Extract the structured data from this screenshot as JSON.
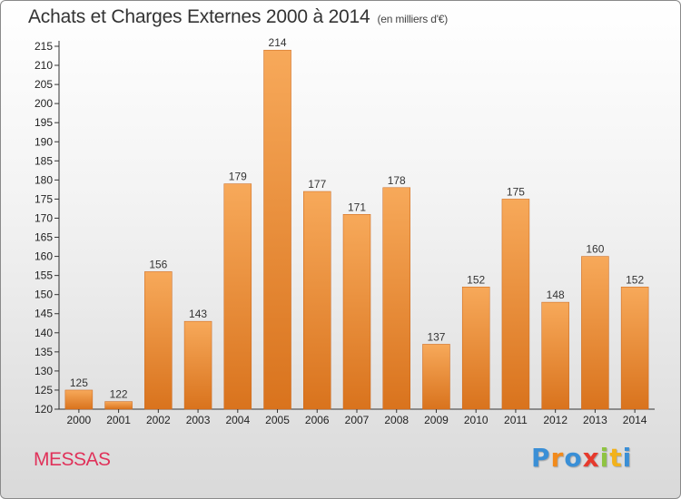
{
  "title": "Achats et Charges Externes 2000 à 2014",
  "subtitle": "(en milliers d'€)",
  "commune": "MESSAS",
  "logo": {
    "letters": [
      "P",
      "r",
      "o",
      "x",
      "i",
      "t",
      "i"
    ],
    "colors": [
      "#3a8fd6",
      "#f28a1b",
      "#3a8fd6",
      "#e63a2d",
      "#8fc441",
      "#f2b21b",
      "#3a8fd6"
    ]
  },
  "colors": {
    "bar_light": "#f7a95a",
    "bar_dark": "#d9731d",
    "commune": "#e0325a"
  },
  "chart_data": {
    "type": "bar",
    "categories": [
      "2000",
      "2001",
      "2002",
      "2003",
      "2004",
      "2005",
      "2006",
      "2007",
      "2008",
      "2009",
      "2010",
      "2011",
      "2012",
      "2013",
      "2014"
    ],
    "values": [
      125,
      122,
      156,
      143,
      179,
      214,
      177,
      171,
      178,
      137,
      152,
      175,
      148,
      160,
      152
    ],
    "ylim": [
      120,
      215
    ],
    "yticks": [
      120,
      125,
      130,
      135,
      140,
      145,
      150,
      155,
      160,
      165,
      170,
      175,
      180,
      185,
      190,
      195,
      200,
      205,
      210,
      215
    ],
    "grid": false,
    "legend": "none"
  }
}
